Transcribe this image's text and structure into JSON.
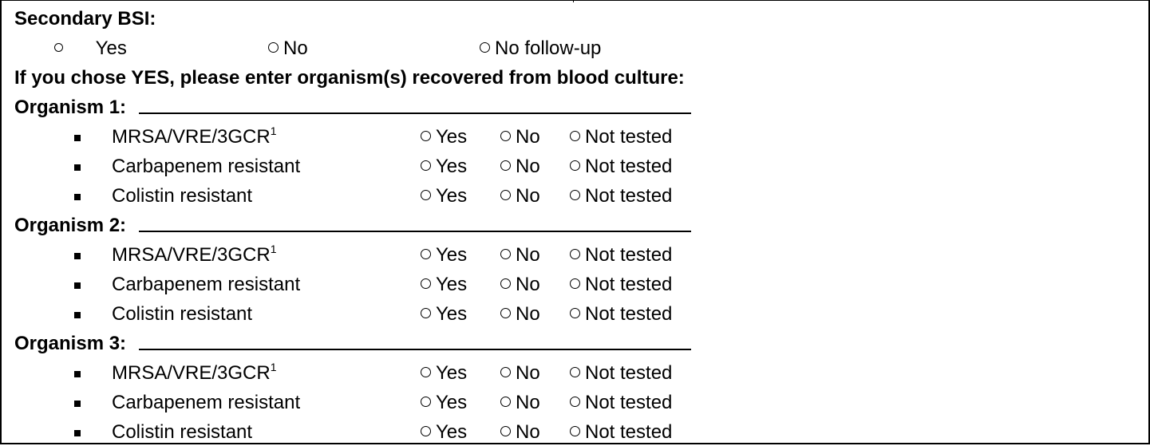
{
  "secondary_bsi": {
    "label": "Secondary BSI:",
    "options": [
      "Yes",
      "No",
      "No follow-up"
    ]
  },
  "instruction": "If you chose YES, please enter organism(s) recovered from blood culture:",
  "organisms": [
    {
      "label": "Organism 1:",
      "tests": [
        {
          "name": "MRSA/VRE/3GCR",
          "sup": "1"
        },
        {
          "name": "Carbapenem resistant",
          "sup": ""
        },
        {
          "name": "Colistin resistant",
          "sup": ""
        }
      ]
    },
    {
      "label": "Organism 2:",
      "tests": [
        {
          "name": "MRSA/VRE/3GCR",
          "sup": "1"
        },
        {
          "name": "Carbapenem resistant",
          "sup": ""
        },
        {
          "name": "Colistin resistant",
          "sup": ""
        }
      ]
    },
    {
      "label": "Organism 3:",
      "tests": [
        {
          "name": "MRSA/VRE/3GCR",
          "sup": "1"
        },
        {
          "name": "Carbapenem resistant",
          "sup": ""
        },
        {
          "name": "Colistin resistant",
          "sup": ""
        }
      ]
    }
  ],
  "test_options": [
    "Yes",
    "No",
    "Not tested"
  ]
}
